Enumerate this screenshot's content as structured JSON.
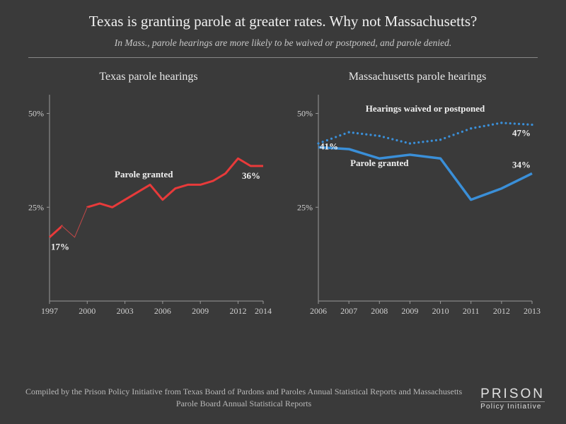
{
  "header": {
    "title": "Texas is granting parole at greater rates. Why not Massachusetts?",
    "subtitle": "In Mass., parole hearings are more likely to be waived or postponed, and parole denied."
  },
  "texas": {
    "title": "Texas parole hearings",
    "type": "line",
    "ylim": [
      0,
      55
    ],
    "yticks": [
      25,
      50
    ],
    "ytick_labels": [
      "25%",
      "50%"
    ],
    "xticks": [
      1997,
      2000,
      2003,
      2006,
      2009,
      2012,
      2014
    ],
    "xlim": [
      1997,
      2014
    ],
    "series": {
      "label": "Parole granted",
      "label_pos": {
        "x": 2004.5,
        "y": 33
      },
      "color": "#e83a3a",
      "line_width": 3,
      "thin_color": "#c04848",
      "thin_width": 1,
      "years": [
        1997,
        1998,
        1999,
        2000,
        2001,
        2002,
        2003,
        2004,
        2005,
        2006,
        2007,
        2008,
        2009,
        2010,
        2011,
        2012,
        2013,
        2014
      ],
      "values": [
        17,
        20,
        17,
        25,
        26,
        25,
        27,
        29,
        31,
        27,
        30,
        31,
        31,
        32,
        34,
        38,
        36,
        36
      ]
    },
    "start_label": "17%",
    "end_label": "36%"
  },
  "mass": {
    "title": "Massachusetts parole hearings",
    "type": "line",
    "ylim": [
      0,
      55
    ],
    "yticks": [
      25,
      50
    ],
    "ytick_labels": [
      "25%",
      "50%"
    ],
    "xticks": [
      2006,
      2007,
      2008,
      2009,
      2010,
      2011,
      2012,
      2013
    ],
    "xlim": [
      2006,
      2013
    ],
    "series_waived": {
      "label": "Hearings waived or postponed",
      "label_pos": {
        "x": 2009.5,
        "y": 50.5
      },
      "color": "#3a8fd8",
      "style": "dotted",
      "dot_radius": 1.6,
      "years": [
        2006,
        2007,
        2008,
        2009,
        2010,
        2011,
        2012,
        2013
      ],
      "values": [
        42,
        45,
        44,
        42,
        43,
        46,
        47.5,
        47
      ]
    },
    "series_granted": {
      "label": "Parole granted",
      "label_pos": {
        "x": 2008,
        "y": 36
      },
      "color": "#3a8fd8",
      "line_width": 3.5,
      "years": [
        2006,
        2007,
        2008,
        2009,
        2010,
        2011,
        2012,
        2013
      ],
      "values": [
        41,
        40.5,
        38,
        39,
        38,
        27,
        30,
        34
      ]
    },
    "start_label": "41%",
    "end_label_waived": "47%",
    "end_label_granted": "34%"
  },
  "footer": {
    "source": "Compiled by the Prison Policy Initiative from Texas Board of Pardons and Paroles Annual Statistical Reports and Massachusetts Parole Board Annual Statistical Reports",
    "logo_top": "PRISON",
    "logo_bottom": "Policy Initiative"
  },
  "colors": {
    "background": "#3a3a3a",
    "axis": "#999999",
    "text": "#e8e8e8"
  }
}
